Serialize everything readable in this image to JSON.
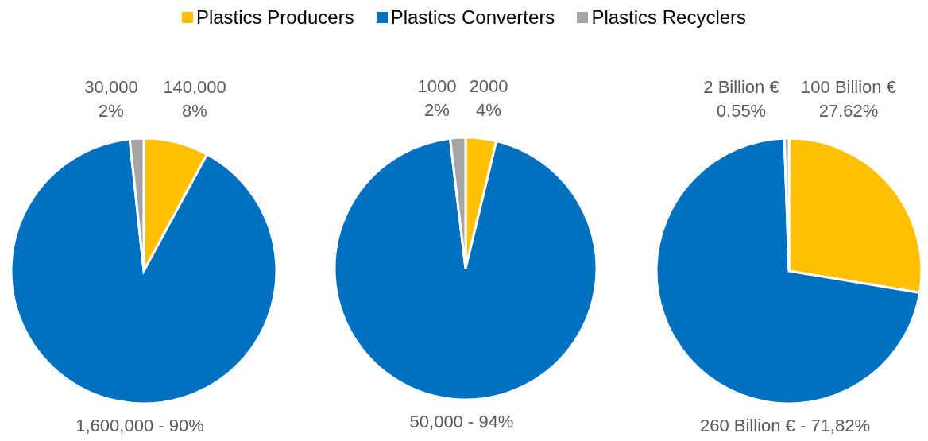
{
  "chart_data": [
    {
      "type": "pie",
      "categories": [
        "Plastics Producers",
        "Plastics Converters",
        "Plastics Recyclers"
      ],
      "values": [
        140000,
        1600000,
        30000
      ],
      "colors": [
        "#ffc000",
        "#0070c0",
        "#a5a5a5"
      ],
      "value_labels": [
        "140,000\n8%",
        "1,600,000 - 90%",
        "30,000\n2%"
      ],
      "legend": "top"
    },
    {
      "type": "pie",
      "categories": [
        null,
        null,
        null
      ],
      "values": [
        2000,
        50000,
        1000
      ],
      "colors": [
        "#ffc000",
        "#0070c0",
        "#a5a5a5"
      ],
      "value_labels": [
        "2000\n4%",
        "50,000 - 94%",
        "1000\n2%"
      ]
    },
    {
      "type": "pie",
      "categories": [
        null,
        null,
        null
      ],
      "values": [
        100,
        260,
        2
      ],
      "colors": [
        "#ffc000",
        "#0070c0",
        "#a5a5a5"
      ],
      "value_labels": [
        "100 Billion €\n27.62%",
        "260 Billion € - 71,82%",
        "2 Billion €\n0.55%"
      ]
    }
  ]
}
